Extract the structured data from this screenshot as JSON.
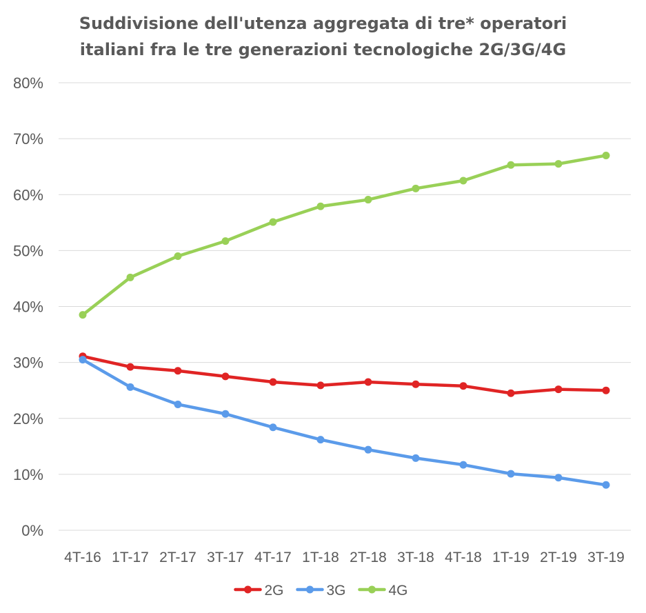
{
  "chart_data": {
    "type": "line",
    "title_lines": [
      "Suddivisione dell'utenza aggregata di tre* operatori",
      "italiani fra le tre generazioni tecnologiche 2G/3G/4G"
    ],
    "categories": [
      "4T-16",
      "1T-17",
      "2T-17",
      "3T-17",
      "4T-17",
      "1T-18",
      "2T-18",
      "3T-18",
      "4T-18",
      "1T-19",
      "2T-19",
      "3T-19"
    ],
    "y_ticks": [
      0,
      10,
      20,
      30,
      40,
      50,
      60,
      70,
      80
    ],
    "y_tick_labels": [
      "0%",
      "10%",
      "20%",
      "30%",
      "40%",
      "50%",
      "60%",
      "70%",
      "80%"
    ],
    "ylim": [
      0,
      80
    ],
    "grid": true,
    "legend_position": "bottom",
    "series": [
      {
        "name": "2G",
        "color": "#e02424",
        "values": [
          31.1,
          29.2,
          28.5,
          27.5,
          26.5,
          25.9,
          26.5,
          26.1,
          25.8,
          24.5,
          25.2,
          25.0
        ]
      },
      {
        "name": "3G",
        "color": "#5b9bea",
        "values": [
          30.5,
          25.6,
          22.5,
          20.8,
          18.4,
          16.2,
          14.4,
          12.9,
          11.7,
          10.1,
          9.4,
          8.1
        ]
      },
      {
        "name": "4G",
        "color": "#99d057",
        "values": [
          38.5,
          45.2,
          49.0,
          51.7,
          55.1,
          57.9,
          59.1,
          61.1,
          62.5,
          65.3,
          65.5,
          67.0
        ]
      }
    ]
  }
}
